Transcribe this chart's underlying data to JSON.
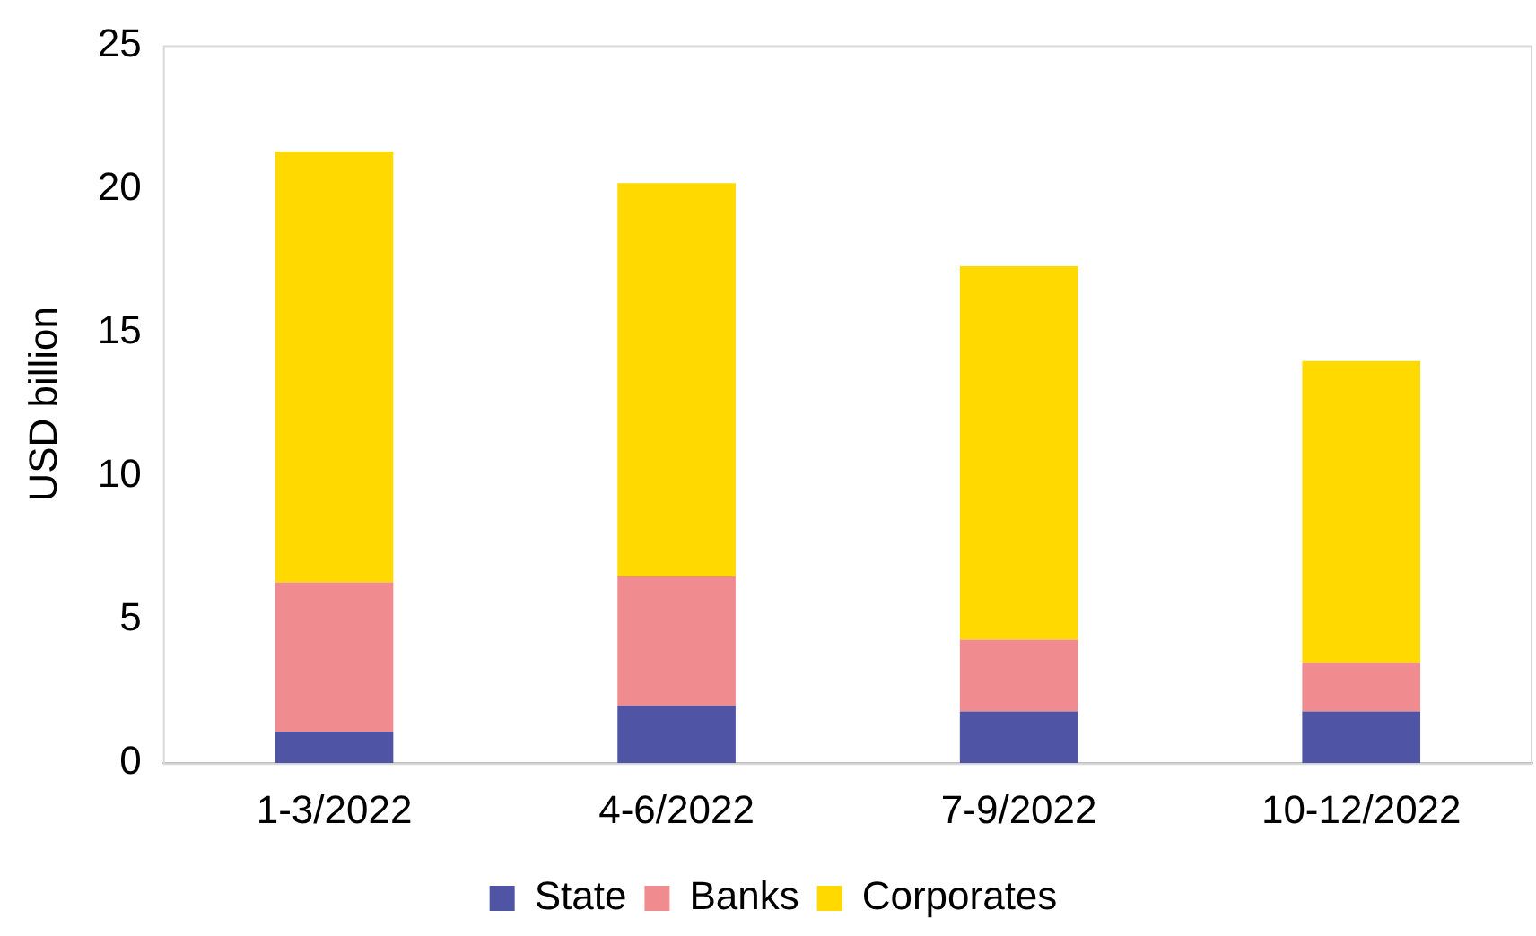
{
  "chart_data": {
    "type": "bar",
    "ylabel": "USD billion",
    "categories": [
      "1-3/2022",
      "4-6/2022",
      "7-9/2022",
      "10-12/2022"
    ],
    "stacked": true,
    "series": [
      {
        "name": "State",
        "color": "#4f54a4",
        "values": [
          1.1,
          2.0,
          1.8,
          1.8
        ]
      },
      {
        "name": "Banks",
        "color": "#f08c90",
        "values": [
          5.2,
          4.5,
          2.5,
          1.7
        ]
      },
      {
        "name": "Corporates",
        "color": "#ffd900",
        "values": [
          15.0,
          13.7,
          13.0,
          10.5
        ]
      }
    ],
    "ylim": [
      0,
      25
    ],
    "yticks": [
      0,
      5,
      10,
      15,
      20,
      25
    ],
    "grid": false,
    "legend": "bottom"
  }
}
